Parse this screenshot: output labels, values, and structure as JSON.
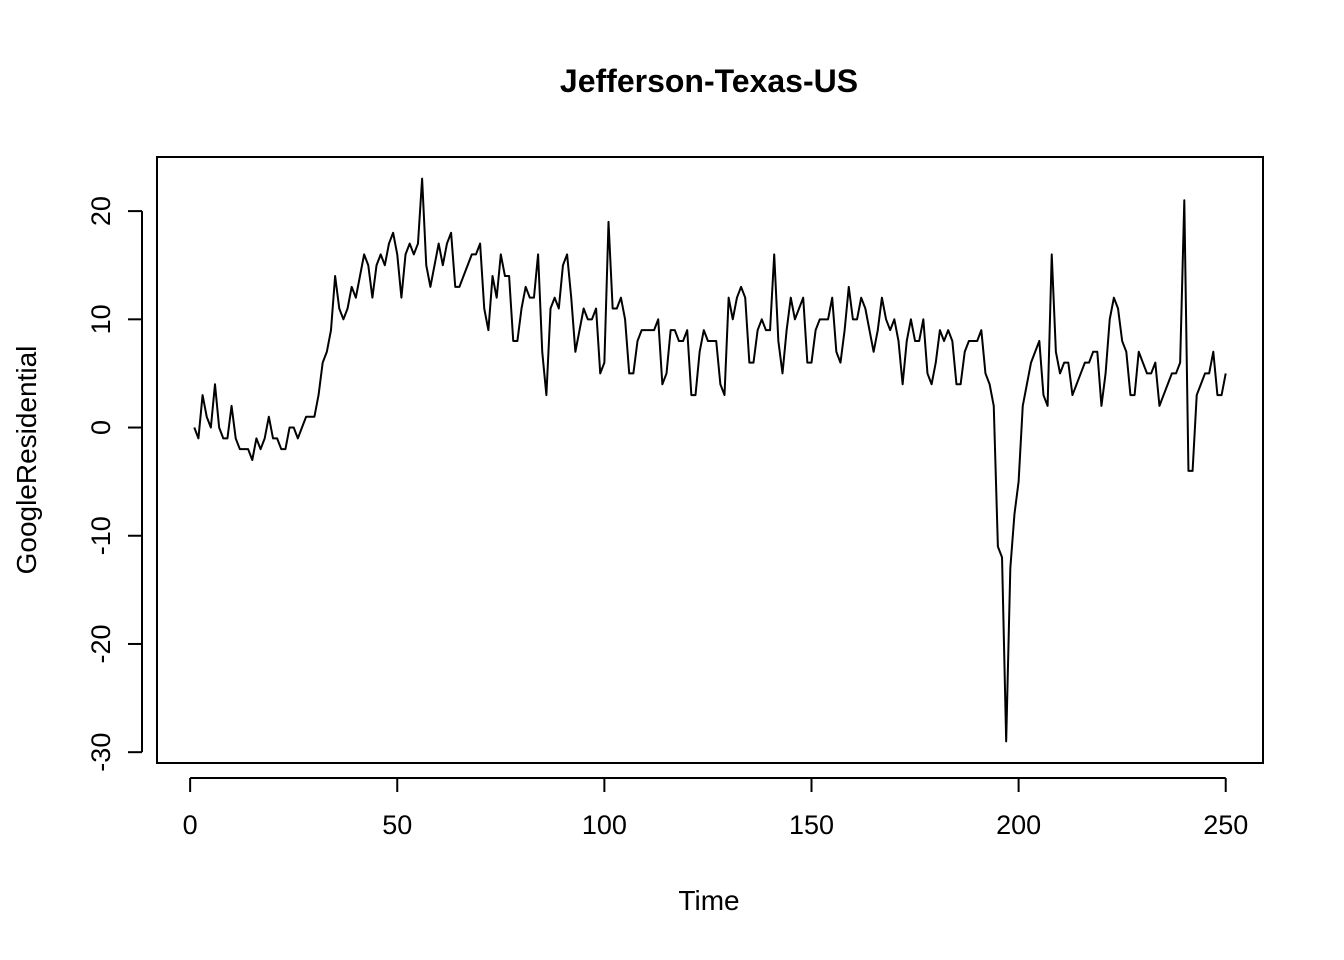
{
  "chart_data": {
    "type": "line",
    "title": "Jefferson-Texas-US",
    "xlabel": "Time",
    "ylabel": "GoogleResidential",
    "xlim": [
      -8,
      259
    ],
    "ylim": [
      -31,
      25
    ],
    "x_ticks": [
      0,
      50,
      100,
      150,
      200,
      250
    ],
    "y_ticks": [
      -30,
      -20,
      -10,
      0,
      10,
      20
    ],
    "x_tick_labels": [
      "0",
      "50",
      "100",
      "150",
      "200",
      "250"
    ],
    "y_tick_labels": [
      "-30",
      "-20",
      "-10",
      "0",
      "10",
      "20"
    ],
    "grid": false,
    "x_start": 1,
    "series": [
      {
        "name": "GoogleResidential",
        "color": "#000000",
        "values": [
          0,
          -1,
          3,
          1,
          0,
          4,
          0,
          -1,
          -1,
          2,
          -1,
          -2,
          -2,
          -2,
          -3,
          -1,
          -2,
          -1,
          1,
          -1,
          -1,
          -2,
          -2,
          0,
          0,
          -1,
          0,
          1,
          1,
          1,
          3,
          6,
          7,
          9,
          14,
          11,
          10,
          11,
          13,
          12,
          14,
          16,
          15,
          12,
          15,
          16,
          15,
          17,
          18,
          16,
          12,
          16,
          17,
          16,
          17,
          23,
          15,
          13,
          15,
          17,
          15,
          17,
          18,
          13,
          13,
          14,
          15,
          16,
          16,
          17,
          11,
          9,
          14,
          12,
          16,
          14,
          14,
          8,
          8,
          11,
          13,
          12,
          12,
          16,
          7,
          3,
          11,
          12,
          11,
          15,
          16,
          12,
          7,
          9,
          11,
          10,
          10,
          11,
          5,
          6,
          19,
          11,
          11,
          12,
          10,
          5,
          5,
          8,
          9,
          9,
          9,
          9,
          10,
          4,
          5,
          9,
          9,
          8,
          8,
          9,
          3,
          3,
          7,
          9,
          8,
          8,
          8,
          4,
          3,
          12,
          10,
          12,
          13,
          12,
          6,
          6,
          9,
          10,
          9,
          9,
          16,
          8,
          5,
          9,
          12,
          10,
          11,
          12,
          6,
          6,
          9,
          10,
          10,
          10,
          12,
          7,
          6,
          9,
          13,
          10,
          10,
          12,
          11,
          9,
          7,
          9,
          12,
          10,
          9,
          10,
          8,
          4,
          8,
          10,
          8,
          8,
          10,
          5,
          4,
          6,
          9,
          8,
          9,
          8,
          4,
          4,
          7,
          8,
          8,
          8,
          9,
          5,
          4,
          2,
          -11,
          -12,
          -29,
          -13,
          -8,
          -5,
          2,
          4,
          6,
          7,
          8,
          3,
          2,
          16,
          7,
          5,
          6,
          6,
          3,
          4,
          5,
          6,
          6,
          7,
          7,
          2,
          5,
          10,
          12,
          11,
          8,
          7,
          3,
          3,
          7,
          6,
          5,
          5,
          6,
          2,
          3,
          4,
          5,
          5,
          6,
          21,
          -4,
          -4,
          3,
          4,
          5,
          5,
          7,
          3,
          3,
          5
        ]
      }
    ]
  }
}
